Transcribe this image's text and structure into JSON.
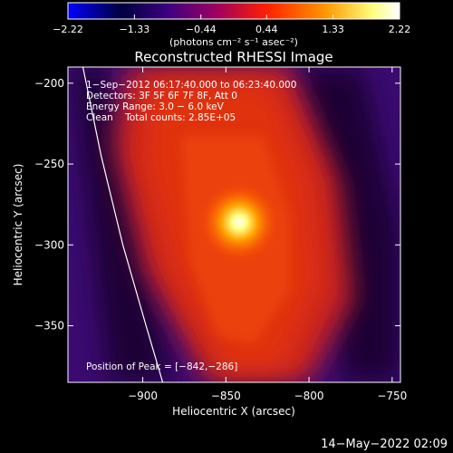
{
  "colorbar": {
    "tick_labels": [
      "−2.22",
      "−1.33",
      "−0.44",
      "0.44",
      "1.33",
      "2.22"
    ],
    "tick_values": [
      -2.22,
      -1.33,
      -0.44,
      0.44,
      1.33,
      2.22
    ],
    "range": [
      -2.22,
      2.22
    ],
    "units_label": "(photons cm⁻² s⁻¹ asec⁻²)",
    "colors": [
      "#0000ff",
      "#00003a",
      "#3c0080",
      "#a00060",
      "#ff2000",
      "#ff9a00",
      "#ffff80",
      "#ffffff"
    ]
  },
  "chart_data": {
    "type": "heatmap",
    "title": "Reconstructed RHESSI Image",
    "xlabel": "Heliocentric X (arcsec)",
    "ylabel": "Heliocentric Y (arcsec)",
    "xlim": [
      -945,
      -745
    ],
    "ylim": [
      -385,
      -190
    ],
    "x_ticks": [
      -900,
      -850,
      -800,
      -750
    ],
    "y_ticks": [
      -200,
      -250,
      -300,
      -350
    ],
    "x_tick_labels": [
      "−900",
      "−850",
      "−800",
      "−750"
    ],
    "y_tick_labels": [
      "−200",
      "−250",
      "−300",
      "−350"
    ],
    "peak": {
      "x": -842,
      "y": -286
    },
    "annotations": [
      "1−Sep−2012 06:17:40.000 to 06:23:40.000",
      "Detectors: 3F 5F 6F 7F 8F, Att 0",
      "Energy Range: 3.0 − 6.0 keV",
      "Clean    Total counts: 2.85E+05"
    ],
    "peak_label": "Position of Peak = [−842,−286]",
    "limb_curve": [
      [
        -936,
        -190
      ],
      [
        -925,
        -245
      ],
      [
        -912,
        -300
      ],
      [
        -898,
        -350
      ],
      [
        -888,
        -385
      ]
    ]
  },
  "footer_timestamp": "14−May−2022 02:09"
}
